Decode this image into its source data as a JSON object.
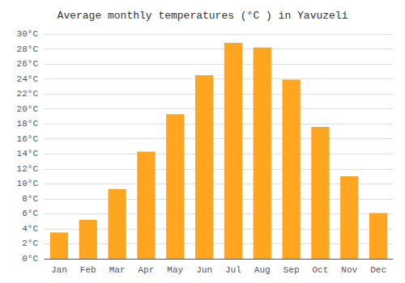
{
  "chart_data": {
    "type": "bar",
    "title": "Average monthly temperatures (°C ) in Yavuzeli",
    "categories": [
      "Jan",
      "Feb",
      "Mar",
      "Apr",
      "May",
      "Jun",
      "Jul",
      "Aug",
      "Sep",
      "Oct",
      "Nov",
      "Dec"
    ],
    "values": [
      3.5,
      5.2,
      9.3,
      14.3,
      19.3,
      24.5,
      28.8,
      28.2,
      23.9,
      17.6,
      11.0,
      6.1
    ],
    "color": "#FFA520",
    "ylim": [
      0,
      30
    ],
    "yticks": [
      {
        "value": 0,
        "label": "0°C"
      },
      {
        "value": 2,
        "label": "2°C"
      },
      {
        "value": 4,
        "label": "4°C"
      },
      {
        "value": 6,
        "label": "6°C"
      },
      {
        "value": 8,
        "label": "8°C"
      },
      {
        "value": 10,
        "label": "10°C"
      },
      {
        "value": 12,
        "label": "12°C"
      },
      {
        "value": 14,
        "label": "14°C"
      },
      {
        "value": 16,
        "label": "16°C"
      },
      {
        "value": 18,
        "label": "18°C"
      },
      {
        "value": 20,
        "label": "20°C"
      },
      {
        "value": 22,
        "label": "22°C"
      },
      {
        "value": 24,
        "label": "24°C"
      },
      {
        "value": 26,
        "label": "26°C"
      },
      {
        "value": 28,
        "label": "28°C"
      },
      {
        "value": 30,
        "label": "30°C"
      }
    ],
    "grid": true
  }
}
